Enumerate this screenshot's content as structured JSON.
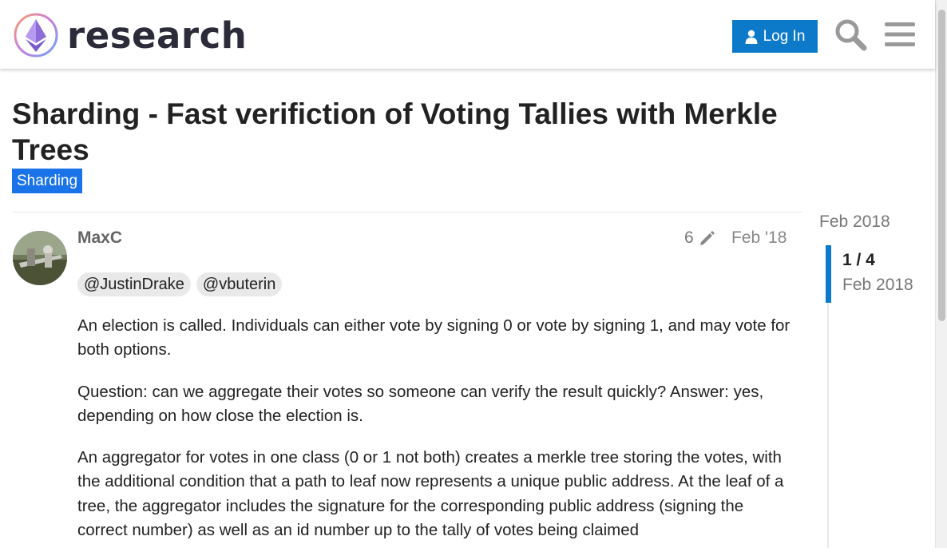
{
  "header": {
    "logo_text": "research",
    "login_label": "Log In",
    "search_icon": "search-icon",
    "menu_icon": "hamburger-menu-icon",
    "colors": {
      "login_button": "#0c79c9",
      "logo_text": "#2b2b3a"
    }
  },
  "topic": {
    "title": "Sharding - Fast verifiction of Voting Tallies with Merkle Trees",
    "category": "Sharding",
    "category_color": "#1a73e8"
  },
  "post": {
    "username": "MaxC",
    "edit_count": "6",
    "edit_icon": "pencil-icon",
    "date": "Feb '18",
    "mentions": [
      "@JustinDrake",
      "@vbuterin"
    ],
    "paragraphs": [
      "An election is called. Individuals can either vote by signing 0 or vote by signing 1, and may vote for both options.",
      "Question: can we aggregate their votes so someone can verify the result quickly? Answer: yes, depending on how close the election is.",
      "An aggregator for votes in one class (0 or 1 not both) creates a merkle tree storing the votes, with the additional condition that a path to leaf now represents a unique public address. At the leaf of a tree, the aggregator includes the signature for the corresponding public address (signing the correct number) as well as an id number up to the tally of votes being claimed"
    ]
  },
  "timeline": {
    "start_date": "Feb 2018",
    "position": "1 / 4",
    "current_date": "Feb 2018",
    "accent_color": "#0c79c9"
  }
}
